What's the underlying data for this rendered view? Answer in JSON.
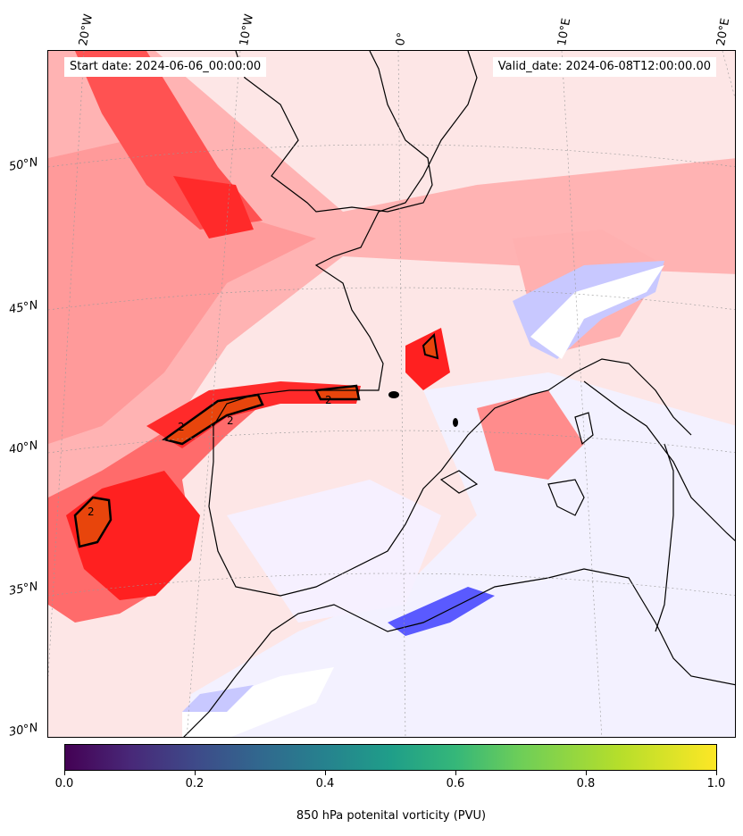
{
  "header": {
    "start_date": "Start date: 2024-06-06_00:00:00",
    "valid_date": "Valid_date: 2024-06-08T12:00:00.00"
  },
  "axes": {
    "lon_labels": [
      "20°W",
      "10°W",
      "0°",
      "10°E",
      "20°E"
    ],
    "lat_labels": [
      "50°N",
      "45°N",
      "40°N",
      "35°N",
      "30°N"
    ]
  },
  "contour_labels": [
    "2",
    "2",
    "2",
    "2"
  ],
  "colorbar": {
    "ticks": [
      "0.0",
      "0.2",
      "0.4",
      "0.6",
      "0.8",
      "1.0"
    ],
    "label": "850 hPa potenital vorticity (PVU)",
    "colormap": "viridis"
  },
  "colors": {
    "positive_strong": "#ff1a1a",
    "positive_mid": "#ff8080",
    "positive_light": "#fde2e2",
    "negative": "#4040ff",
    "negative_light": "#e8e8ff",
    "contour_fill": "#e8450c"
  }
}
